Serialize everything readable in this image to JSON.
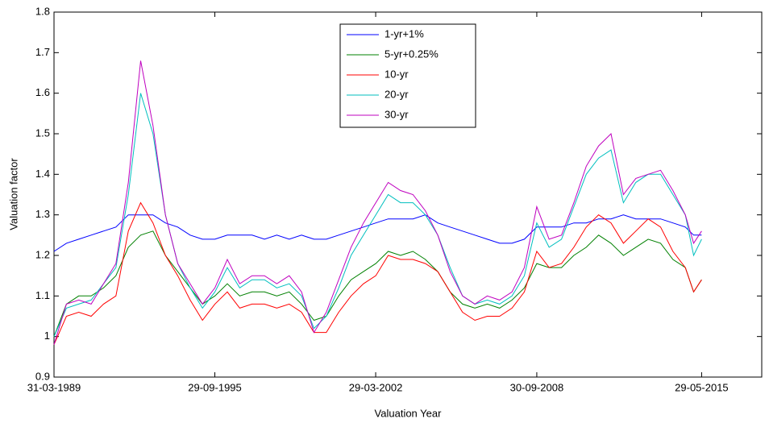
{
  "chart_data": {
    "type": "line",
    "xlabel": "Valuation Year",
    "ylabel": "Valuation factor",
    "x": [
      "1989-03-31",
      "1989-09-30",
      "1990-03-31",
      "1990-09-30",
      "1991-03-31",
      "1991-09-30",
      "1992-03-31",
      "1992-09-30",
      "1993-03-31",
      "1993-09-30",
      "1994-03-31",
      "1994-09-30",
      "1995-03-31",
      "1995-09-30",
      "1996-03-31",
      "1996-09-30",
      "1997-03-31",
      "1997-09-30",
      "1998-03-31",
      "1998-09-30",
      "1999-03-31",
      "1999-09-30",
      "2000-03-31",
      "2000-09-30",
      "2001-03-31",
      "2001-09-30",
      "2002-03-31",
      "2002-09-30",
      "2003-03-31",
      "2003-09-30",
      "2004-03-31",
      "2004-09-30",
      "2005-03-31",
      "2005-09-30",
      "2006-03-31",
      "2006-09-30",
      "2007-03-31",
      "2007-09-30",
      "2008-03-31",
      "2008-09-30",
      "2009-03-31",
      "2009-09-30",
      "2010-03-31",
      "2010-09-30",
      "2011-03-31",
      "2011-09-30",
      "2012-03-31",
      "2012-09-30",
      "2013-03-31",
      "2013-09-30",
      "2014-03-31",
      "2014-09-30",
      "2015-01-31",
      "2015-05-29"
    ],
    "series": [
      {
        "name": "1-yr+1%",
        "color": "#0000ff",
        "values": [
          1.21,
          1.23,
          1.24,
          1.25,
          1.26,
          1.27,
          1.3,
          1.3,
          1.3,
          1.28,
          1.27,
          1.25,
          1.24,
          1.24,
          1.25,
          1.25,
          1.25,
          1.24,
          1.25,
          1.24,
          1.25,
          1.24,
          1.24,
          1.25,
          1.26,
          1.27,
          1.28,
          1.29,
          1.29,
          1.29,
          1.3,
          1.28,
          1.27,
          1.26,
          1.25,
          1.24,
          1.23,
          1.23,
          1.24,
          1.27,
          1.27,
          1.27,
          1.28,
          1.28,
          1.29,
          1.29,
          1.3,
          1.29,
          1.29,
          1.29,
          1.28,
          1.27,
          1.25,
          1.25
        ]
      },
      {
        "name": "5-yr+0.25%",
        "color": "#008000",
        "values": [
          1.0,
          1.08,
          1.1,
          1.1,
          1.12,
          1.15,
          1.22,
          1.25,
          1.26,
          1.2,
          1.16,
          1.12,
          1.08,
          1.1,
          1.13,
          1.1,
          1.11,
          1.11,
          1.1,
          1.11,
          1.08,
          1.04,
          1.05,
          1.1,
          1.14,
          1.16,
          1.18,
          1.21,
          1.2,
          1.21,
          1.19,
          1.16,
          1.11,
          1.08,
          1.07,
          1.08,
          1.07,
          1.09,
          1.12,
          1.18,
          1.17,
          1.17,
          1.2,
          1.22,
          1.25,
          1.23,
          1.2,
          1.22,
          1.24,
          1.23,
          1.19,
          1.17,
          1.11,
          1.14
        ]
      },
      {
        "name": "10-yr",
        "color": "#ff0000",
        "values": [
          0.98,
          1.05,
          1.06,
          1.05,
          1.08,
          1.1,
          1.26,
          1.33,
          1.28,
          1.2,
          1.15,
          1.09,
          1.04,
          1.08,
          1.11,
          1.07,
          1.08,
          1.08,
          1.07,
          1.08,
          1.06,
          1.01,
          1.01,
          1.06,
          1.1,
          1.13,
          1.15,
          1.2,
          1.19,
          1.19,
          1.18,
          1.16,
          1.11,
          1.06,
          1.04,
          1.05,
          1.05,
          1.07,
          1.11,
          1.21,
          1.17,
          1.18,
          1.22,
          1.27,
          1.3,
          1.28,
          1.23,
          1.26,
          1.29,
          1.27,
          1.21,
          1.17,
          1.11,
          1.14
        ]
      },
      {
        "name": "20-yr",
        "color": "#00bfbf",
        "values": [
          1.0,
          1.07,
          1.08,
          1.09,
          1.13,
          1.17,
          1.35,
          1.6,
          1.5,
          1.3,
          1.18,
          1.12,
          1.07,
          1.11,
          1.17,
          1.12,
          1.14,
          1.14,
          1.12,
          1.13,
          1.1,
          1.02,
          1.05,
          1.12,
          1.2,
          1.25,
          1.3,
          1.35,
          1.33,
          1.33,
          1.3,
          1.25,
          1.17,
          1.1,
          1.08,
          1.09,
          1.08,
          1.1,
          1.15,
          1.28,
          1.22,
          1.24,
          1.32,
          1.4,
          1.44,
          1.46,
          1.33,
          1.38,
          1.4,
          1.4,
          1.35,
          1.3,
          1.2,
          1.24
        ]
      },
      {
        "name": "30-yr",
        "color": "#bf00bf",
        "values": [
          0.98,
          1.08,
          1.09,
          1.08,
          1.13,
          1.18,
          1.38,
          1.68,
          1.52,
          1.3,
          1.18,
          1.13,
          1.08,
          1.12,
          1.19,
          1.13,
          1.15,
          1.15,
          1.13,
          1.15,
          1.11,
          1.01,
          1.06,
          1.14,
          1.22,
          1.28,
          1.33,
          1.38,
          1.36,
          1.35,
          1.31,
          1.25,
          1.16,
          1.1,
          1.08,
          1.1,
          1.09,
          1.11,
          1.17,
          1.32,
          1.24,
          1.25,
          1.33,
          1.42,
          1.47,
          1.5,
          1.35,
          1.39,
          1.4,
          1.41,
          1.36,
          1.3,
          1.23,
          1.26
        ]
      }
    ],
    "xlim": [
      "1989-03-31",
      "2017-11-01"
    ],
    "xticks": [
      {
        "value": "1989-03-31",
        "label": "31-03-1989"
      },
      {
        "value": "1995-09-29",
        "label": "29-09-1995"
      },
      {
        "value": "2002-03-29",
        "label": "29-03-2002"
      },
      {
        "value": "2008-09-30",
        "label": "30-09-2008"
      },
      {
        "value": "2015-05-29",
        "label": "29-05-2015"
      }
    ],
    "ylim": [
      0.9,
      1.8
    ],
    "yticks": [
      0.9,
      1,
      1.1,
      1.2,
      1.3,
      1.4,
      1.5,
      1.6,
      1.7,
      1.8
    ],
    "legend": "north"
  }
}
